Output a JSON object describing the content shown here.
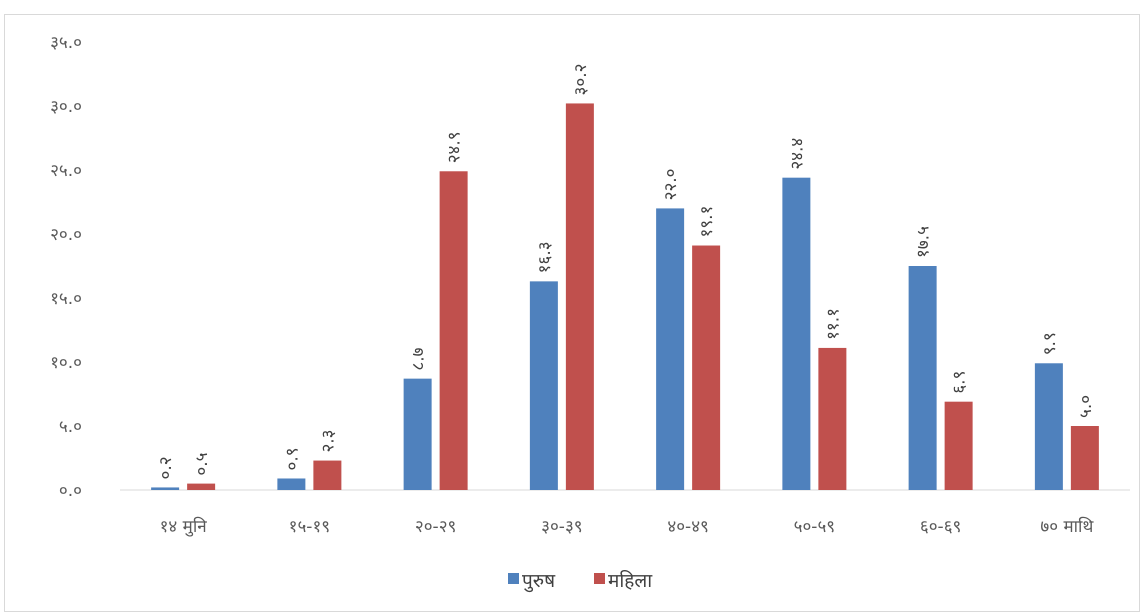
{
  "chart_data": {
    "type": "bar",
    "title": "",
    "xlabel": "",
    "ylabel": "",
    "categories": [
      "१४ मुनि",
      "१५-१९",
      "२०-२९",
      "३०-३९",
      "४०-४९",
      "५०-५९",
      "६०-६९",
      "७० माथि"
    ],
    "series": [
      {
        "name": "पुरुष",
        "color": "#4F81BD",
        "values": [
          0.2,
          0.9,
          8.7,
          16.3,
          22.0,
          24.4,
          17.5,
          9.9
        ],
        "labels": [
          "०.२",
          "०.९",
          "८.७",
          "१६.३",
          "२२.०",
          "२४.४",
          "१७.५",
          "९.९"
        ]
      },
      {
        "name": "महिला",
        "color": "#C0504D",
        "values": [
          0.5,
          2.3,
          24.9,
          30.2,
          19.1,
          11.1,
          6.9,
          5.0
        ],
        "labels": [
          "०.५",
          "२.३",
          "२४.९",
          "३०.२",
          "१९.१",
          "११.१",
          "६.९",
          "५.०"
        ]
      }
    ],
    "ylim": [
      0,
      35
    ],
    "yticks": [
      0,
      5,
      10,
      15,
      20,
      25,
      30,
      35
    ],
    "ytick_labels": [
      "०.०",
      "५.०",
      "१०.०",
      "१५.०",
      "२०.०",
      "२५.०",
      "३०.०",
      "३५.०"
    ],
    "grid": false,
    "legend_position": "bottom",
    "data_label_rotation": "vertical"
  }
}
